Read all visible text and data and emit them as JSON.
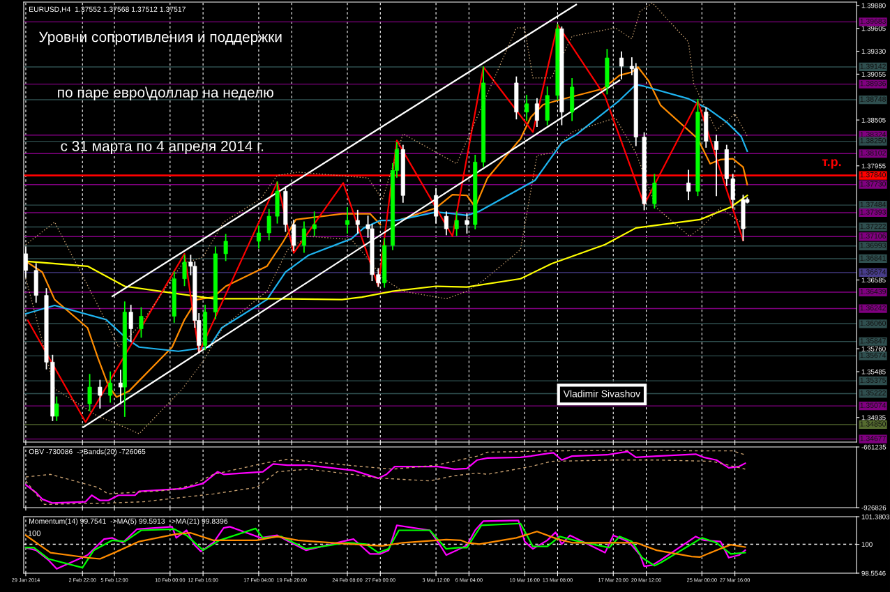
{
  "chart_data": [
    {
      "type": "candlestick",
      "title": "EURUSD,H4  1.37552 1.37568 1.37512 1.37517",
      "x": [
        "2014-01-29T08:00",
        "2014-01-30T04:00",
        "2014-01-31T00:00",
        "2014-01-31T12:00",
        "2014-01-31T20:00",
        "2014-02-03T12:00",
        "2014-02-04T08:00",
        "2014-02-05T04:00",
        "2014-02-06T00:00",
        "2014-02-06T08:00",
        "2014-02-06T20:00",
        "2014-02-07T16:00",
        "2014-02-10T08:00",
        "2014-02-11T04:00",
        "2014-02-11T16:00",
        "2014-02-12T00:00",
        "2014-02-12T08:00",
        "2014-02-12T20:00",
        "2014-02-13T16:00",
        "2014-02-14T12:00",
        "2014-02-17T04:00",
        "2014-02-18T00:00",
        "2014-02-18T16:00",
        "2014-02-19T08:00",
        "2014-02-20T00:00",
        "2014-02-20T20:00",
        "2014-02-21T16:00",
        "2014-02-24T08:00",
        "2014-02-25T04:00",
        "2014-02-26T00:00",
        "2014-02-26T08:00",
        "2014-02-26T20:00",
        "2014-02-27T08:00",
        "2014-02-28T00:00",
        "2014-02-28T08:00",
        "2014-02-28T20:00",
        "2014-03-03T12:00",
        "2014-03-04T08:00",
        "2014-03-05T04:00",
        "2014-03-06T00:00",
        "2014-03-06T16:00",
        "2014-03-07T08:00",
        "2014-03-10T00:00",
        "2014-03-10T20:00",
        "2014-03-11T16:00",
        "2014-03-12T12:00",
        "2014-03-13T08:00",
        "2014-03-13T16:00",
        "2014-03-14T12:00",
        "2014-03-17T08:00",
        "2014-03-18T12:00",
        "2014-03-19T08:00",
        "2014-03-19T16:00",
        "2014-03-20T08:00",
        "2014-03-21T04:00",
        "2014-03-23T22:00",
        "2014-03-24T16:00",
        "2014-03-25T08:00",
        "2014-03-26T04:00",
        "2014-03-27T00:00",
        "2014-03-27T12:00",
        "2014-03-28T08:00",
        "2014-03-28T16:00"
      ],
      "ohlc": [
        [
          1.369,
          1.3698,
          1.3662,
          1.367
        ],
        [
          1.367,
          1.3678,
          1.3632,
          1.364
        ],
        [
          1.364,
          1.3648,
          1.3552,
          1.356
        ],
        [
          1.356,
          1.3568,
          1.349,
          1.3495
        ],
        [
          1.3495,
          1.3518,
          1.349,
          1.351
        ],
        [
          1.351,
          1.3545,
          1.3502,
          1.353
        ],
        [
          1.353,
          1.3538,
          1.3505,
          1.352
        ],
        [
          1.352,
          1.3548,
          1.3512,
          1.3535
        ],
        [
          1.3535,
          1.355,
          1.351,
          1.353
        ],
        [
          1.353,
          1.3632,
          1.3495,
          1.362
        ],
        [
          1.362,
          1.3628,
          1.3585,
          1.36
        ],
        [
          1.36,
          1.3625,
          1.359,
          1.3615
        ],
        [
          1.3615,
          1.3668,
          1.3608,
          1.366
        ],
        [
          1.366,
          1.3688,
          1.3652,
          1.368
        ],
        [
          1.368,
          1.3688,
          1.3665,
          1.3675
        ],
        [
          1.3675,
          1.368,
          1.3602,
          1.361
        ],
        [
          1.361,
          1.3618,
          1.3571,
          1.358
        ],
        [
          1.358,
          1.3628,
          1.3575,
          1.362
        ],
        [
          1.362,
          1.3698,
          1.3612,
          1.369
        ],
        [
          1.369,
          1.3713,
          1.3682,
          1.3705
        ],
        [
          1.3705,
          1.3723,
          1.3697,
          1.3715
        ],
        [
          1.3715,
          1.3743,
          1.3707,
          1.3735
        ],
        [
          1.3735,
          1.3776,
          1.3727,
          1.3765
        ],
        [
          1.3765,
          1.377,
          1.3717,
          1.3725
        ],
        [
          1.3725,
          1.373,
          1.3694,
          1.37
        ],
        [
          1.37,
          1.3728,
          1.3692,
          1.372
        ],
        [
          1.372,
          1.374,
          1.3712,
          1.3725
        ],
        [
          1.3725,
          1.3745,
          1.3715,
          1.373
        ],
        [
          1.373,
          1.3742,
          1.3715,
          1.3725
        ],
        [
          1.3725,
          1.3735,
          1.371,
          1.372
        ],
        [
          1.372,
          1.3725,
          1.3658,
          1.3665
        ],
        [
          1.3665,
          1.3672,
          1.3651,
          1.3655
        ],
        [
          1.3655,
          1.3708,
          1.365,
          1.37
        ],
        [
          1.37,
          1.3798,
          1.3695,
          1.379
        ],
        [
          1.379,
          1.3823,
          1.3782,
          1.3815
        ],
        [
          1.3815,
          1.382,
          1.3752,
          1.376
        ],
        [
          1.376,
          1.3768,
          1.3727,
          1.3735
        ],
        [
          1.3735,
          1.374,
          1.3713,
          1.372
        ],
        [
          1.372,
          1.374,
          1.3712,
          1.373
        ],
        [
          1.373,
          1.3738,
          1.3715,
          1.3725
        ],
        [
          1.3725,
          1.3808,
          1.372,
          1.38
        ],
        [
          1.38,
          1.3914,
          1.3795,
          1.3895
        ],
        [
          1.3895,
          1.3902,
          1.3852,
          1.386
        ],
        [
          1.386,
          1.388,
          1.385,
          1.387
        ],
        [
          1.387,
          1.3876,
          1.3843,
          1.385
        ],
        [
          1.385,
          1.389,
          1.3845,
          1.388
        ],
        [
          1.388,
          1.3965,
          1.3875,
          1.396
        ],
        [
          1.396,
          1.3962,
          1.3845,
          1.386
        ],
        [
          1.386,
          1.39,
          1.385,
          1.389
        ],
        [
          1.389,
          1.3935,
          1.3882,
          1.3925
        ],
        [
          1.3925,
          1.3932,
          1.39,
          1.3915
        ],
        [
          1.3915,
          1.3925,
          1.3905,
          1.3912
        ],
        [
          1.3912,
          1.3918,
          1.382,
          1.383
        ],
        [
          1.383,
          1.3835,
          1.3743,
          1.375
        ],
        [
          1.375,
          1.3785,
          1.3745,
          1.3775
        ],
        [
          1.3775,
          1.379,
          1.3755,
          1.3765
        ],
        [
          1.3765,
          1.3875,
          1.376,
          1.386
        ],
        [
          1.386,
          1.3865,
          1.3818,
          1.3825
        ],
        [
          1.3825,
          1.3832,
          1.376,
          1.3815
        ],
        [
          1.3815,
          1.382,
          1.3772,
          1.378
        ],
        [
          1.378,
          1.3785,
          1.3745,
          1.3755
        ],
        [
          1.3755,
          1.376,
          1.3706,
          1.372
        ],
        [
          1.37552,
          1.37568,
          1.37512,
          1.37517
        ]
      ],
      "colors": [
        "#ffffff",
        "#ffffff",
        "#ffffff",
        "#ffffff",
        "#00ff00",
        "#00ff00",
        "#ffffff",
        "#00ff00",
        "#ffffff",
        "#00ff00",
        "#ffffff",
        "#00ff00",
        "#00ff00",
        "#00ff00",
        "#ffffff",
        "#ffffff",
        "#ffffff",
        "#00ff00",
        "#00ff00",
        "#00ff00",
        "#00ff00",
        "#00ff00",
        "#00ff00",
        "#ffffff",
        "#ffffff",
        "#00ff00",
        "#00ff00",
        "#00ff00",
        "#ffffff",
        "#ffffff",
        "#ffffff",
        "#ffffff",
        "#00ff00",
        "#00ff00",
        "#00ff00",
        "#ffffff",
        "#ffffff",
        "#ffffff",
        "#00ff00",
        "#ffffff",
        "#00ff00",
        "#00ff00",
        "#ffffff",
        "#00ff00",
        "#ffffff",
        "#00ff00",
        "#00ff00",
        "#ffffff",
        "#00ff00",
        "#00ff00",
        "#ffffff",
        "#ffffff",
        "#ffffff",
        "#ffffff",
        "#00ff00",
        "#ffffff",
        "#00ff00",
        "#ffffff",
        "#ffffff",
        "#ffffff",
        "#ffffff",
        "#ffffff",
        "#ffffff"
      ],
      "series": [
        {
          "type": "line",
          "color": "#ff8c00",
          "x": [
            "2014-01-29T08:00",
            "2014-01-30T16:00",
            "2014-01-31T16:00",
            "2014-02-03T08:00",
            "2014-02-04T04:00",
            "2014-02-05T00:00",
            "2014-02-05T16:00",
            "2014-02-06T16:00",
            "2014-02-10T04:00",
            "2014-02-11T04:00",
            "2014-02-12T04:00",
            "2014-02-13T12:00",
            "2014-02-14T12:00",
            "2014-02-17T20:00",
            "2014-02-19T04:00",
            "2014-02-20T04:00",
            "2014-02-23T22:00",
            "2014-02-26T04:00",
            "2014-02-27T00:00",
            "2014-02-28T00:00",
            "2014-02-28T16:00",
            "2014-03-03T12:00",
            "2014-03-04T20:00",
            "2014-03-06T00:00",
            "2014-03-06T16:00",
            "2014-03-07T16:00",
            "2014-03-10T08:00",
            "2014-03-11T04:00",
            "2014-03-12T04:00",
            "2014-03-13T08:00",
            "2014-03-17T00:00",
            "2014-03-18T08:00",
            "2014-03-19T08:00",
            "2014-03-19T20:00",
            "2014-03-20T16:00",
            "2014-03-21T16:00",
            "2014-03-24T16:00",
            "2014-03-25T16:00",
            "2014-03-26T12:00",
            "2014-03-27T12:00",
            "2014-03-28T08:00",
            "2014-03-28T16:00"
          ],
          "values": [
            1.3681,
            1.3668,
            1.3635,
            1.3601,
            1.3565,
            1.3532,
            1.3518,
            1.3525,
            1.3578,
            1.3611,
            1.3635,
            1.3638,
            1.3651,
            1.3675,
            1.3705,
            1.3731,
            1.3738,
            1.3738,
            1.3725,
            null,
            1.3731,
            1.3745,
            1.3761,
            1.376,
            1.3746,
            1.3781,
            1.3828,
            1.3854,
            1.3869,
            1.3874,
            1.3888,
            1.3904,
            1.3908,
            1.3914,
            1.3898,
            1.3868,
            1.3828,
            1.3798,
            1.3803,
            1.3804,
            1.3794,
            1.3773
          ]
        },
        {
          "type": "line",
          "color": "#1eb4f0",
          "x": [
            "2014-01-29T08:00",
            "2014-01-31T16:00",
            "2014-02-04T20:00",
            "2014-02-06T12:00",
            "2014-02-07T12:00",
            "2014-02-10T16:00",
            "2014-02-13T04:00",
            "2014-02-14T04:00",
            "2014-02-17T20:00",
            "2014-02-19T08:00",
            "2014-02-21T04:00",
            "2014-02-24T16:00",
            "2014-02-25T16:00",
            "2014-02-27T00:00",
            "2014-02-28T08:00",
            "2014-03-03T12:00",
            "2014-03-05T00:00",
            "2014-03-06T00:00",
            "2014-03-07T00:00",
            "2014-03-11T12:00",
            "2014-03-13T16:00",
            "2014-03-14T20:00",
            "2014-03-18T08:00",
            "2014-03-19T16:00",
            "2014-03-20T08:00",
            "2014-03-23T22:00",
            "2014-03-25T12:00",
            "2014-03-27T00:00",
            "2014-03-28T04:00",
            "2014-03-28T16:00"
          ],
          "values": [
            1.3618,
            1.3628,
            1.3611,
            1.3588,
            1.3578,
            1.3573,
            1.3578,
            1.3601,
            1.3635,
            1.3668,
            1.3688,
            1.3708,
            1.3721,
            1.373,
            1.373,
            1.374,
            1.3738,
            1.3736,
            1.3741,
            1.3778,
            1.3823,
            1.3833,
            1.3874,
            1.3893,
            1.3891,
            1.3876,
            1.3864,
            1.3848,
            1.3831,
            1.3813
          ]
        },
        {
          "type": "line",
          "color": "#ffff00",
          "x": [
            "2014-01-29T08:00",
            "2014-02-03T08:00",
            "2014-02-06T08:00",
            "2014-02-10T04:00",
            "2014-02-13T12:00",
            "2014-02-18T16:00",
            "2014-02-23T22:00",
            "2014-02-25T12:00",
            "2014-02-28T00:00",
            "2014-03-03T12:00",
            "2014-03-06T00:00",
            "2014-03-10T08:00",
            "2014-03-12T20:00",
            "2014-03-17T04:00",
            "2014-03-19T16:00",
            "2014-03-24T20:00",
            "2014-03-27T08:00",
            "2014-03-28T16:00"
          ],
          "values": [
            1.3681,
            1.3675,
            1.3651,
            1.3643,
            1.3636,
            1.3636,
            1.3635,
            1.3638,
            1.3645,
            1.3651,
            1.365,
            1.366,
            1.3678,
            1.3701,
            1.3721,
            1.3731,
            1.3746,
            1.376
          ]
        },
        {
          "type": "line",
          "color": "#ff0000",
          "x": [
            "2014-01-29T12:00",
            "2014-02-03T04:00",
            "2014-02-11T04:00",
            "2014-02-12T08:00",
            "2014-02-18T16:00",
            "2014-02-20T00:00",
            "2014-02-24T00:00",
            "2014-02-26T20:00",
            "2014-02-28T08:00",
            "2014-03-04T20:00",
            "2014-03-07T08:00",
            "2014-03-11T08:00",
            "2014-03-13T08:00",
            "2014-03-17T04:00",
            "2014-03-20T08:00",
            "2014-03-24T16:00",
            "2014-03-28T08:00"
          ],
          "values": [
            1.361,
            1.3488,
            1.369,
            1.3571,
            1.3776,
            1.3691,
            1.3775,
            1.3651,
            1.3826,
            1.3711,
            1.3914,
            1.3836,
            1.3965,
            1.3879,
            1.3749,
            1.3873,
            1.3706
          ]
        },
        {
          "type": "line",
          "color": "#ffffff",
          "x": [
            "2014-02-05T08:00",
            "2014-03-14T20:00"
          ],
          "values": [
            1.3639,
            1.3989
          ]
        },
        {
          "type": "line",
          "color": "#ffffff",
          "x": [
            "2014-02-03T00:00",
            "2014-03-18T08:00"
          ],
          "values": [
            1.3482,
            1.3898
          ]
        },
        {
          "type": "line",
          "color": "#c8a070",
          "line_style": "dotted",
          "x": [
            "2014-01-29T08:00",
            "2014-01-31T16:00",
            "2014-02-04T04:00",
            "2014-02-05T20:00",
            "2014-02-07T12:00",
            "2014-02-11T00:00",
            "2014-02-12T16:00",
            "2014-02-14T08:00",
            "2014-02-17T08:00",
            "2014-02-18T16:00",
            "2014-02-20T08:00",
            "2014-02-26T00:00",
            "2014-02-27T04:00",
            "2014-02-28T20:00",
            "2014-03-05T04:00",
            "2014-03-10T00:00",
            "2014-03-10T16:00",
            "2014-03-11T08:00",
            "2014-03-12T20:00",
            "2014-03-14T12:00",
            "2014-03-18T00:00",
            "2014-03-19T08:00",
            "2014-03-20T00:00",
            "2014-03-21T00:00",
            "2014-03-23T22:00",
            "2014-03-24T08:00",
            "2014-03-26T04:00",
            "2014-03-27T16:00",
            "2014-03-28T16:00"
          ],
          "values": [
            1.3701,
            1.3728,
            1.3628,
            1.3578,
            1.3603,
            1.3678,
            1.3686,
            1.3728,
            1.3756,
            1.3784,
            1.3788,
            1.3781,
            1.3755,
            1.3834,
            1.3798,
            1.3961,
            1.3961,
            1.3901,
            1.3901,
            1.3951,
            1.3961,
            1.3948,
            1.3981,
            1.3991,
            1.3944,
            1.3894,
            1.3838,
            1.3858,
            1.3831
          ]
        },
        {
          "type": "line",
          "color": "#c8a070",
          "line_style": "dotted",
          "x": [
            "2014-01-29T08:00",
            "2014-01-31T16:00",
            "2014-02-04T04:00",
            "2014-02-05T20:00",
            "2014-02-07T12:00",
            "2014-02-11T00:00",
            "2014-02-12T16:00",
            "2014-02-14T08:00",
            "2014-02-17T20:00",
            "2014-02-19T12:00",
            "2014-02-21T04:00",
            "2014-02-24T16:00",
            "2014-02-26T08:00",
            "2014-02-27T04:00",
            "2014-02-28T20:00",
            "2014-03-04T08:00",
            "2014-03-06T00:00",
            "2014-03-07T08:00",
            "2014-03-10T08:00",
            "2014-03-11T16:00",
            "2014-03-12T20:00",
            "2014-03-14T12:00",
            "2014-03-18T00:00",
            "2014-03-19T16:00",
            "2014-03-21T08:00",
            "2014-03-24T00:00",
            "2014-03-24T20:00",
            "2014-03-26T12:00",
            "2014-03-28T04:00",
            "2014-03-28T16:00"
          ],
          "values": [
            1.3661,
            1.3528,
            1.3495,
            1.3485,
            1.3474,
            1.3528,
            1.3561,
            1.3603,
            1.3645,
            1.3695,
            1.3711,
            1.3707,
            1.3678,
            1.3661,
            1.3645,
            1.3636,
            1.3645,
            1.3658,
            1.3695,
            1.3808,
            1.3811,
            1.3836,
            1.3853,
            1.3811,
            1.3745,
            1.3711,
            1.372,
            1.3745,
            1.3728,
            1.372
          ]
        }
      ],
      "ref_lines": [
        {
          "axis": "y",
          "value": 1.39683,
          "label": "1.39683",
          "color": "#800080"
        },
        {
          "axis": "y",
          "value": 1.39142,
          "label": "1.39142",
          "color": "#2f4f4f"
        },
        {
          "axis": "y",
          "value": 1.38936,
          "label": "1.38936",
          "color": "#800080"
        },
        {
          "axis": "y",
          "value": 1.38748,
          "label": "1.38748",
          "color": "#2f4f4f"
        },
        {
          "axis": "y",
          "value": 1.38324,
          "label": "1.38324",
          "color": "#800080"
        },
        {
          "axis": "y",
          "value": 1.3825,
          "label": "1.38250",
          "color": "#2f4f4f"
        },
        {
          "axis": "y",
          "value": 1.38102,
          "label": "1.38102",
          "color": "#800080"
        },
        {
          "axis": "y",
          "value": 1.3784,
          "label": "1.37840",
          "color": "#ff0000"
        },
        {
          "axis": "y",
          "value": 1.3773,
          "label": "1.37730",
          "color": "#800080"
        },
        {
          "axis": "y",
          "value": 1.37484,
          "label": "1.37484",
          "color": "#2f4f4f"
        },
        {
          "axis": "y",
          "value": 1.37393,
          "label": "1.37393",
          "color": "#800080"
        },
        {
          "axis": "y",
          "value": 1.37222,
          "label": "1.37222",
          "color": "#2f4f4f"
        },
        {
          "axis": "y",
          "value": 1.37106,
          "label": "1.37106",
          "color": "#800080"
        },
        {
          "axis": "y",
          "value": 1.36993,
          "label": "1.36993",
          "color": "#2f4f4f"
        },
        {
          "axis": "y",
          "value": 1.36841,
          "label": "1.36841",
          "color": "#2f4f4f"
        },
        {
          "axis": "y",
          "value": 1.36674,
          "label": "1.36674",
          "color": "#483d8b"
        },
        {
          "axis": "y",
          "value": 1.36439,
          "label": "1.36439",
          "color": "#800080"
        },
        {
          "axis": "y",
          "value": 1.36242,
          "label": "1.36242",
          "color": "#800080"
        },
        {
          "axis": "y",
          "value": 1.3606,
          "label": "1.36060",
          "color": "#2f4f4f"
        },
        {
          "axis": "y",
          "value": 1.35847,
          "label": "1.35847",
          "color": "#2f4f4f"
        },
        {
          "axis": "y",
          "value": 1.35674,
          "label": "1.35674",
          "color": "#2f4f4f"
        },
        {
          "axis": "y",
          "value": 1.35375,
          "label": "1.35375",
          "color": "#2f4f4f"
        },
        {
          "axis": "y",
          "value": 1.35222,
          "label": "1.35222",
          "color": "#2f4f4f"
        },
        {
          "axis": "y",
          "value": 1.35074,
          "label": "1.35074",
          "color": "#800080"
        },
        {
          "axis": "y",
          "value": 1.3485,
          "label": "1.34850",
          "color": "#556b2f"
        },
        {
          "axis": "y",
          "value": 1.34677,
          "label": "1.34677",
          "color": "#800080"
        }
      ],
      "annotations": [
        "Уровни сопротивления и поддержки",
        "по паре евро\\доллар на неделю",
        "с 31 марта по 4 апреля 2014 г.",
        {
          "text": "т.р.",
          "x": "2014-04-04T12:00",
          "y": 1.3784
        },
        "Vladimir Sivashov"
      ],
      "xlim": [
        "2014-01-29T04:00",
        "2014-04-06T12:00"
      ],
      "ylim": [
        1.3464,
        1.3992
      ],
      "xticks": [
        "2014-01-29T08:00",
        "2014-02-02T22:00",
        "2014-02-05T12:00",
        "2014-02-10T00:00",
        "2014-02-12T16:00",
        "2014-02-17T04:00",
        "2014-02-19T20:00",
        "2014-02-24T08:00",
        "2014-02-27T00:00",
        "2014-03-03T12:00",
        "2014-03-06T04:00",
        "2014-03-10T16:00",
        "2014-03-13T08:00",
        "2014-03-17T20:00",
        "2014-03-20T12:00",
        "2014-03-25T00:00",
        "2014-03-27T16:00"
      ],
      "yticks": [
        {
          "value": 1.3988,
          "label": "1.39880"
        },
        {
          "value": 1.39605,
          "label": "1.39605"
        },
        {
          "value": 1.3933,
          "label": "1.39330"
        },
        {
          "value": 1.39055,
          "label": "1.39055"
        },
        {
          "value": 1.38505,
          "label": "1.38505"
        },
        {
          "value": 1.37955,
          "label": "1.37955"
        },
        {
          "value": 1.36585,
          "label": "1.36585"
        },
        {
          "value": 1.3576,
          "label": "1.35760"
        },
        {
          "value": 1.35485,
          "label": "1.35485"
        },
        {
          "value": 1.34935,
          "label": "1.34935"
        }
      ],
      "grid": "x",
      "tick_labels": "y"
    },
    {
      "type": "line",
      "title": "OBV -730086  ->Bands(20) -726065",
      "series": [
        {
          "color": "#ff00ff",
          "x": [
            "2014-01-29T08:00",
            "2014-01-30T04:00",
            "2014-01-30T16:00",
            "2014-01-31T12:00",
            "2014-02-03T04:00",
            "2014-02-03T16:00",
            "2014-02-04T08:00",
            "2014-02-05T00:00",
            "2014-02-05T20:00",
            "2014-02-07T04:00",
            "2014-02-07T12:00",
            "2014-02-11T00:00",
            "2014-02-11T20:00",
            "2014-02-12T16:00",
            "2014-02-13T20:00",
            "2014-02-14T08:00",
            "2014-02-17T12:00",
            "2014-02-18T08:00",
            "2014-02-19T12:00",
            "2014-02-20T08:00",
            "2014-02-21T04:00",
            "2014-02-23T22:00",
            "2014-02-24T20:00",
            "2014-02-25T12:00",
            "2014-02-26T20:00",
            "2014-02-27T12:00",
            "2014-02-28T04:00",
            "2014-03-03T16:00",
            "2014-03-05T00:00",
            "2014-03-06T00:00",
            "2014-03-06T20:00",
            "2014-03-07T16:00",
            "2014-03-10T08:00",
            "2014-03-11T04:00",
            "2014-03-12T12:00",
            "2014-03-13T00:00",
            "2014-03-13T16:00",
            "2014-03-14T12:00",
            "2014-03-17T08:00",
            "2014-03-18T08:00",
            "2014-03-19T00:00",
            "2014-03-19T16:00",
            "2014-03-21T08:00",
            "2014-03-24T12:00",
            "2014-03-25T04:00",
            "2014-03-26T04:00",
            "2014-03-27T04:00",
            "2014-03-28T00:00",
            "2014-03-28T12:00"
          ],
          "values": [
            -826900,
            -861200,
            -889700,
            -906800,
            -901100,
            -872600,
            -895400,
            -895400,
            -872600,
            -872600,
            -855400,
            -844000,
            -832600,
            -821200,
            -769800,
            -781200,
            -769800,
            -735500,
            -741200,
            -741200,
            -741200,
            -758300,
            -764000,
            -775500,
            -798300,
            -781200,
            -746900,
            -746900,
            -758300,
            -755500,
            -718400,
            -709800,
            -706900,
            -701200,
            -689800,
            -686900,
            -718400,
            -701200,
            -695500,
            -686900,
            -681200,
            -706900,
            -701200,
            -692600,
            -706900,
            -718400,
            -752600,
            -746900,
            -732600
          ]
        },
        {
          "color": "#c8a070",
          "line_style": "dashed",
          "x": [
            "2014-01-29T08:00",
            "2014-01-31T08:00",
            "2014-02-04T04:00",
            "2014-02-05T00:00",
            "2014-02-10T04:00",
            "2014-02-11T20:00",
            "2014-02-13T12:00",
            "2014-02-17T20:00",
            "2014-02-19T12:00",
            "2014-02-21T04:00",
            "2014-02-25T12:00",
            "2014-02-28T00:00",
            "2014-03-03T12:00",
            "2014-03-06T20:00",
            "2014-03-07T16:00",
            "2014-03-12T20:00",
            "2014-03-19T16:00",
            "2014-03-24T20:00",
            "2014-03-27T12:00",
            "2014-03-28T12:00"
          ],
          "values": [
            -792600,
            -781200,
            -838300,
            -866900,
            -849700,
            -826900,
            -781200,
            -729800,
            -715500,
            -724100,
            -746900,
            -758300,
            -741200,
            -701200,
            -684100,
            -678400,
            -675500,
            -678400,
            -678400,
            -695500
          ]
        },
        {
          "color": "#c8a070",
          "line_style": "dashed",
          "x": [
            "2014-01-29T08:00",
            "2014-01-30T20:00",
            "2014-02-05T00:00",
            "2014-02-07T20:00",
            "2014-02-13T12:00",
            "2014-02-17T00:00",
            "2014-02-18T16:00",
            "2014-02-21T04:00",
            "2014-02-24T16:00",
            "2014-02-27T04:00",
            "2014-03-03T00:00",
            "2014-03-05T00:00",
            "2014-03-06T20:00",
            "2014-03-07T16:00",
            "2014-03-11T04:00",
            "2014-03-12T20:00",
            "2014-03-18T00:00",
            "2014-03-21T08:00",
            "2014-03-25T20:00",
            "2014-03-28T12:00"
          ],
          "values": [
            -809700,
            -912600,
            -906800,
            -901100,
            -866900,
            -838300,
            -769800,
            -758300,
            -781200,
            -798300,
            -809700,
            -786900,
            -775500,
            -781200,
            -746900,
            -724100,
            -718400,
            -718400,
            -724100,
            -758300
          ]
        }
      ],
      "xlim": [
        "2014-01-29T04:00",
        "2014-04-06T12:00"
      ],
      "ylim": [
        -926826,
        -661235
      ],
      "xticks": [
        "2014-01-29T08:00",
        "2014-02-02T22:00",
        "2014-02-05T12:00",
        "2014-02-10T00:00",
        "2014-02-12T16:00",
        "2014-02-17T04:00",
        "2014-02-19T20:00",
        "2014-02-24T08:00",
        "2014-02-27T00:00",
        "2014-03-03T12:00",
        "2014-03-06T04:00",
        "2014-03-10T16:00",
        "2014-03-13T08:00",
        "2014-03-17T20:00",
        "2014-03-20T12:00",
        "2014-03-25T00:00",
        "2014-03-27T16:00"
      ],
      "yticks": [
        -661235,
        -926826
      ],
      "grid": "x",
      "tick_labels": "y"
    },
    {
      "type": "line",
      "title": "Momentum(14) 99.7541  ->MA(5) 99.5913  ->MA(21) 99.8396",
      "series": [
        {
          "color": "#ff00ff",
          "x": [
            "2014-01-29T08:00",
            "2014-01-30T04:00",
            "2014-01-31T04:00",
            "2014-01-31T20:00",
            "2014-02-03T08:00",
            "2014-02-04T16:00",
            "2014-02-05T08:00",
            "2014-02-06T04:00",
            "2014-02-07T08:00",
            "2014-02-10T04:00",
            "2014-02-10T12:00",
            "2014-02-11T08:00",
            "2014-02-12T00:00",
            "2014-02-12T12:00",
            "2014-02-13T12:00",
            "2014-02-14T08:00",
            "2014-02-14T20:00",
            "2014-02-17T08:00",
            "2014-02-18T16:00",
            "2014-02-20T00:00",
            "2014-02-21T00:00",
            "2014-02-23T22:00",
            "2014-02-24T20:00",
            "2014-02-26T04:00",
            "2014-02-27T00:00",
            "2014-02-27T16:00",
            "2014-02-28T08:00",
            "2014-03-03T00:00",
            "2014-03-03T20:00",
            "2014-03-04T08:00",
            "2014-03-05T04:00",
            "2014-03-06T00:00",
            "2014-03-06T16:00",
            "2014-03-07T08:00",
            "2014-03-10T04:00",
            "2014-03-10T16:00",
            "2014-03-11T08:00",
            "2014-03-12T12:00",
            "2014-03-13T04:00",
            "2014-03-13T16:00",
            "2014-03-14T08:00",
            "2014-03-17T04:00",
            "2014-03-17T20:00",
            "2014-03-19T00:00",
            "2014-03-19T08:00",
            "2014-03-20T00:00",
            "2014-03-20T08:00",
            "2014-03-21T00:00",
            "2014-03-21T16:00",
            "2014-03-24T12:00",
            "2014-03-25T04:00",
            "2014-03-26T12:00",
            "2014-03-27T04:00",
            "2014-03-28T00:00",
            "2014-03-28T12:00"
          ],
          "values": [
            99.83,
            99.7,
            99.21,
            98.77,
            99.46,
            100.26,
            100.32,
            100.08,
            100.76,
            100.88,
            100.32,
            100.7,
            99.95,
            99.64,
            100.08,
            100.82,
            100.88,
            100.32,
            100.45,
            100.01,
            99.7,
            100.14,
            100.26,
            99.52,
            99.52,
            99.7,
            100.95,
            100.7,
            99.95,
            99.46,
            99.7,
            99.95,
            100.7,
            101.16,
            101.19,
            100.14,
            99.77,
            100.2,
            100.6,
            100.01,
            100.45,
            99.58,
            100.45,
            100.14,
            99.95,
            99.46,
            98.9,
            98.96,
            99.21,
            100.39,
            100.2,
            100.14,
            99.33,
            99.46,
            99.7
          ]
        },
        {
          "color": "#00ff00",
          "x": [
            "2014-01-29T08:00",
            "2014-01-30T00:00",
            "2014-01-31T04:00",
            "2014-02-02T22:00",
            "2014-02-03T20:00",
            "2014-02-05T08:00",
            "2014-02-06T08:00",
            "2014-02-07T16:00",
            "2014-02-10T08:00",
            "2014-02-11T08:00",
            "2014-02-12T16:00",
            "2014-02-14T00:00",
            "2014-02-16T22:00",
            "2014-02-17T12:00",
            "2014-02-19T00:00",
            "2014-02-21T00:00",
            "2014-02-24T08:00",
            "2014-02-25T20:00",
            "2014-02-26T20:00",
            "2014-02-27T16:00",
            "2014-02-28T12:00",
            "2014-03-03T00:00",
            "2014-03-04T08:00",
            "2014-03-05T08:00",
            "2014-03-06T00:00",
            "2014-03-07T04:00",
            "2014-03-10T08:00",
            "2014-03-11T08:00",
            "2014-03-12T12:00",
            "2014-03-13T12:00",
            "2014-03-14T16:00",
            "2014-03-17T12:00",
            "2014-03-18T08:00",
            "2014-03-19T08:00",
            "2014-03-20T04:00",
            "2014-03-21T04:00",
            "2014-03-21T16:00",
            "2014-03-25T00:00",
            "2014-03-26T04:00",
            "2014-03-27T08:00",
            "2014-03-28T12:00"
          ],
          "values": [
            99.83,
            99.83,
            99.27,
            98.83,
            99.7,
            100.2,
            100.14,
            100.7,
            100.76,
            100.45,
            99.7,
            100.2,
            100.79,
            100.32,
            100.39,
            99.77,
            100.08,
            100.01,
            99.58,
            99.77,
            100.7,
            100.7,
            99.77,
            99.83,
            99.83,
            100.95,
            101.04,
            99.89,
            99.89,
            100.39,
            100.2,
            99.83,
            100.39,
            100.14,
            99.33,
            98.93,
            99.08,
            100.32,
            100.08,
            99.52,
            99.58
          ]
        },
        {
          "color": "#ff8c00",
          "x": [
            "2014-01-29T08:00",
            "2014-01-31T08:00",
            "2014-02-03T08:00",
            "2014-02-04T08:00",
            "2014-02-05T12:00",
            "2014-02-07T12:00",
            "2014-02-10T12:00",
            "2014-02-11T16:00",
            "2014-02-13T12:00",
            "2014-02-17T00:00",
            "2014-02-18T16:00",
            "2014-02-20T08:00",
            "2014-02-24T16:00",
            "2014-02-27T04:00",
            "2014-02-28T20:00",
            "2014-03-04T08:00",
            "2014-03-05T12:00",
            "2014-03-06T00:00",
            "2014-03-07T00:00",
            "2014-03-10T00:00",
            "2014-03-11T16:00",
            "2014-03-13T08:00",
            "2014-03-14T12:00",
            "2014-03-19T16:00",
            "2014-03-21T08:00",
            "2014-03-24T04:00",
            "2014-03-24T20:00",
            "2014-03-26T04:00",
            "2014-03-27T08:00",
            "2014-03-28T12:00"
          ],
          "values": [
            100.45,
            99.58,
            99.33,
            99.27,
            99.58,
            100.14,
            100.51,
            100.57,
            100.2,
            100.2,
            100.39,
            100.2,
            100.01,
            99.92,
            100.08,
            100.23,
            100.2,
            100.08,
            100.01,
            100.32,
            100.64,
            100.26,
            100.08,
            100.08,
            99.7,
            99.39,
            99.36,
            99.7,
            99.98,
            99.86
          ]
        }
      ],
      "ref_lines": [
        {
          "axis": "y",
          "value": 100,
          "color": "#ffffff",
          "line_style": "dashed"
        }
      ],
      "annotations": [
        {
          "text": "100",
          "x": "2014-01-29T12:00",
          "y": 100
        }
      ],
      "xlim": [
        "2014-01-29T04:00",
        "2014-04-06T12:00"
      ],
      "ylim": [
        98.5546,
        101.3803
      ],
      "xticks": [
        {
          "value": "2014-01-29T08:00",
          "label": "29 Jan 2014"
        },
        {
          "value": "2014-02-02T22:00",
          "label": "2 Feb 22:00"
        },
        {
          "value": "2014-02-05T12:00",
          "label": "5 Feb 12:00"
        },
        {
          "value": "2014-02-10T00:00",
          "label": "10 Feb 00:00"
        },
        {
          "value": "2014-02-12T16:00",
          "label": "12 Feb 16:00"
        },
        {
          "value": "2014-02-17T04:00",
          "label": "17 Feb 04:00"
        },
        {
          "value": "2014-02-19T20:00",
          "label": "19 Feb 20:00"
        },
        {
          "value": "2014-02-24T08:00",
          "label": "24 Feb 08:00"
        },
        {
          "value": "2014-02-27T00:00",
          "label": "27 Feb 00:00"
        },
        {
          "value": "2014-03-03T12:00",
          "label": "3 Mar 12:00"
        },
        {
          "value": "2014-03-06T04:00",
          "label": "6 Mar 04:00"
        },
        {
          "value": "2014-03-10T16:00",
          "label": "10 Mar 16:00"
        },
        {
          "value": "2014-03-13T08:00",
          "label": "13 Mar 08:00"
        },
        {
          "value": "2014-03-17T20:00",
          "label": "17 Mar 20:00"
        },
        {
          "value": "2014-03-20T12:00",
          "label": "20 Mar 12:00"
        },
        {
          "value": "2014-03-25T00:00",
          "label": "25 Mar 00:00"
        },
        {
          "value": "2014-03-27T16:00",
          "label": "27 Mar 16:00"
        }
      ],
      "yticks": [
        101.3803,
        100,
        98.5546
      ],
      "grid": "x"
    }
  ]
}
